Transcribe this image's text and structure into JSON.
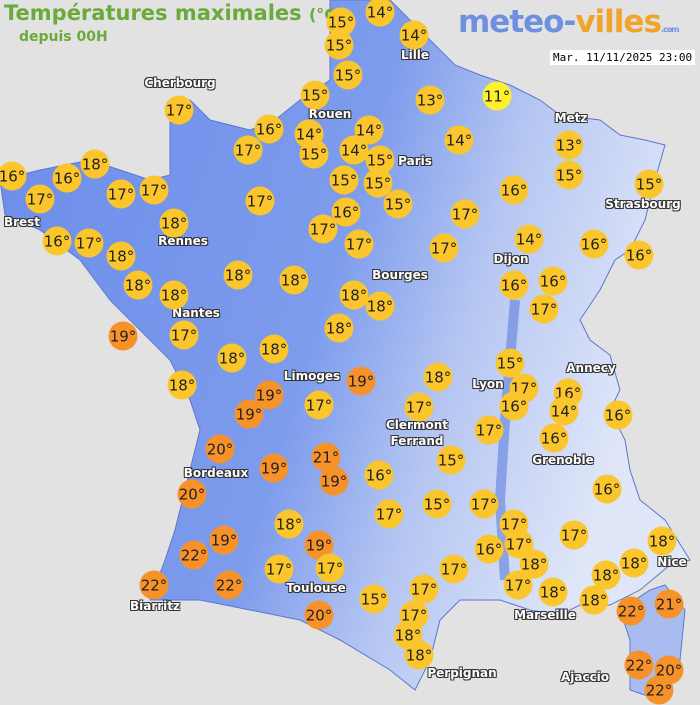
{
  "header": {
    "title": "Températures maximales",
    "unit": "(°C)",
    "subtitle": "depuis 00H",
    "logo": {
      "part1": "meteo-",
      "part2": "villes",
      "suffix": ".com"
    },
    "timestamp": "Mar. 11/11/2025 23:00"
  },
  "colors": {
    "mild": "#fbc62b",
    "cold": "#fff02e",
    "warm": "#f7922a",
    "land": "#7091ea",
    "sea": "#e2e2e2"
  },
  "cities": [
    "Cherbourg",
    "Lille",
    "Rouen",
    "Paris",
    "Metz",
    "Strasbourg",
    "Brest",
    "Rennes",
    "Bourges",
    "Dijon",
    "Nantes",
    "Limoges",
    "Annecy",
    "Lyon",
    "Clermont\nFerrand",
    "Grenoble",
    "Bordeaux",
    "Nice",
    "Toulouse",
    "Biarritz",
    "Marseille",
    "Perpignan",
    "Ajaccio"
  ],
  "temperatures": [
    "15°",
    "14°",
    "15°",
    "14°",
    "15°",
    "15°",
    "13°",
    "11°",
    "17°",
    "16°",
    "14°",
    "14°",
    "17°",
    "15°",
    "14°",
    "15°",
    "14°",
    "13°",
    "16°",
    "18°",
    "17°",
    "16°",
    "17°",
    "17°",
    "17°",
    "15°",
    "15°",
    "15°",
    "16°",
    "16°",
    "15°",
    "15°",
    "16°",
    "17°",
    "18°",
    "18°",
    "17°",
    "17°",
    "17°",
    "17°",
    "14°",
    "16°",
    "16°",
    "18°",
    "18°",
    "18°",
    "18°",
    "18°",
    "18°",
    "16°",
    "16°",
    "17°",
    "19°",
    "17°",
    "18°",
    "18°",
    "18°",
    "18°",
    "19°",
    "15°",
    "17°",
    "16°",
    "16°",
    "14°",
    "16°",
    "18°",
    "19°",
    "19°",
    "17°",
    "17°",
    "17°",
    "16°",
    "20°",
    "21°",
    "19°",
    "19°",
    "16°",
    "15°",
    "16°",
    "20°",
    "18°",
    "17°",
    "15°",
    "17°",
    "17°",
    "17°",
    "19°",
    "22°",
    "19°",
    "16°",
    "17°",
    "18°",
    "18°",
    "17°",
    "17°",
    "17°",
    "17°",
    "18°",
    "17°",
    "18°",
    "18°",
    "22°",
    "22°",
    "18°",
    "15°",
    "17°",
    "20°",
    "22°",
    "21°",
    "18°",
    "18°",
    "22°",
    "20°",
    "22°"
  ]
}
